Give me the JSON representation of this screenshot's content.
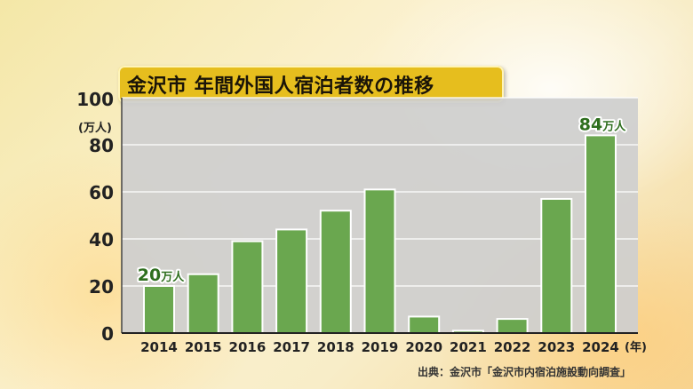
{
  "chart_data": {
    "type": "bar",
    "title": "金沢市 年間外国人宿泊者数の推移",
    "categories": [
      "2014",
      "2015",
      "2016",
      "2017",
      "2018",
      "2019",
      "2020",
      "2021",
      "2022",
      "2023",
      "2024"
    ],
    "values": [
      20,
      25,
      39,
      44,
      52,
      61,
      7,
      1,
      6,
      57,
      84
    ],
    "ylabel": "(万人)",
    "x_unit": "(年)",
    "ylim": [
      0,
      100
    ],
    "yticks": [
      0,
      20,
      40,
      60,
      80,
      100
    ],
    "grid": true,
    "data_labels": [
      {
        "category": "2014",
        "number": "20",
        "unit": "万人"
      },
      {
        "category": "2024",
        "number": "84",
        "unit": "万人"
      }
    ],
    "colors": {
      "bar": "#6aa74f",
      "bar_border": "#ffffff",
      "plot_bg": "#cfcfcf",
      "grid": "#ffffff",
      "title_bg": "#e6be1e"
    },
    "source": "出典：金沢市「金沢市内宿泊施設動向調査」"
  }
}
